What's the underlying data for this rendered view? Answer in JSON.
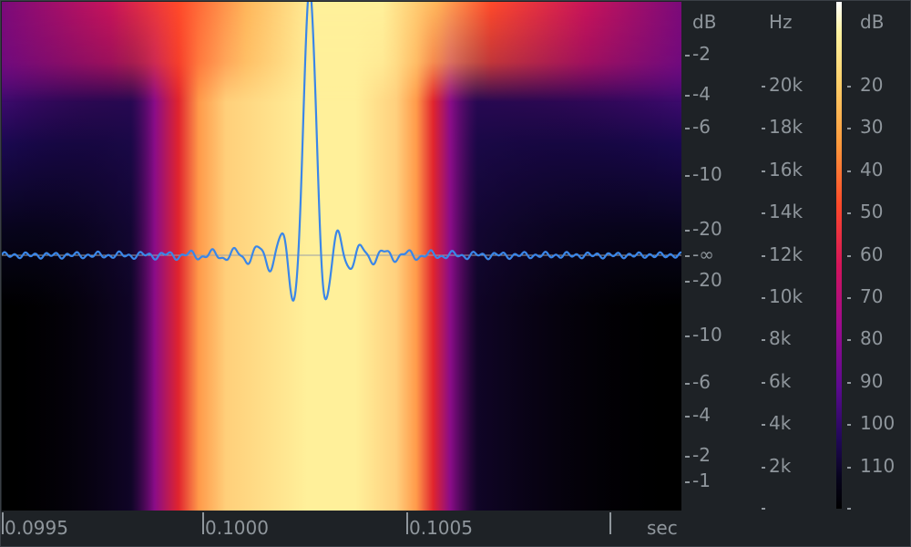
{
  "spectrogram": {
    "colors": {
      "black": "#000000",
      "deep_navy": "#0a0630",
      "purple": "#5a0b86",
      "magenta": "#b0127a",
      "red": "#ff3a30",
      "orange": "#ff9a3c",
      "pale_yellow": "#fff09a",
      "waveform": "#3a86e8",
      "centerline": "#9aa0a6"
    }
  },
  "db_axis": {
    "title": "dB",
    "ticks": [
      "-2",
      "-4",
      "-6",
      "-10",
      "-20",
      "-∞",
      "-20",
      "-10",
      "-6",
      "-4",
      "-2",
      "-1"
    ]
  },
  "hz_axis": {
    "title": "Hz",
    "ticks": [
      "20k",
      "18k",
      "16k",
      "14k",
      "12k",
      "10k",
      "8k",
      "6k",
      "4k",
      "2k"
    ]
  },
  "db_scale": {
    "title": "dB",
    "ticks": [
      "20",
      "30",
      "40",
      "50",
      "60",
      "70",
      "80",
      "90",
      "100",
      "110"
    ]
  },
  "time_axis": {
    "ticks": [
      "0.0995",
      "0.1000",
      "0.1005"
    ],
    "unit": "sec"
  }
}
